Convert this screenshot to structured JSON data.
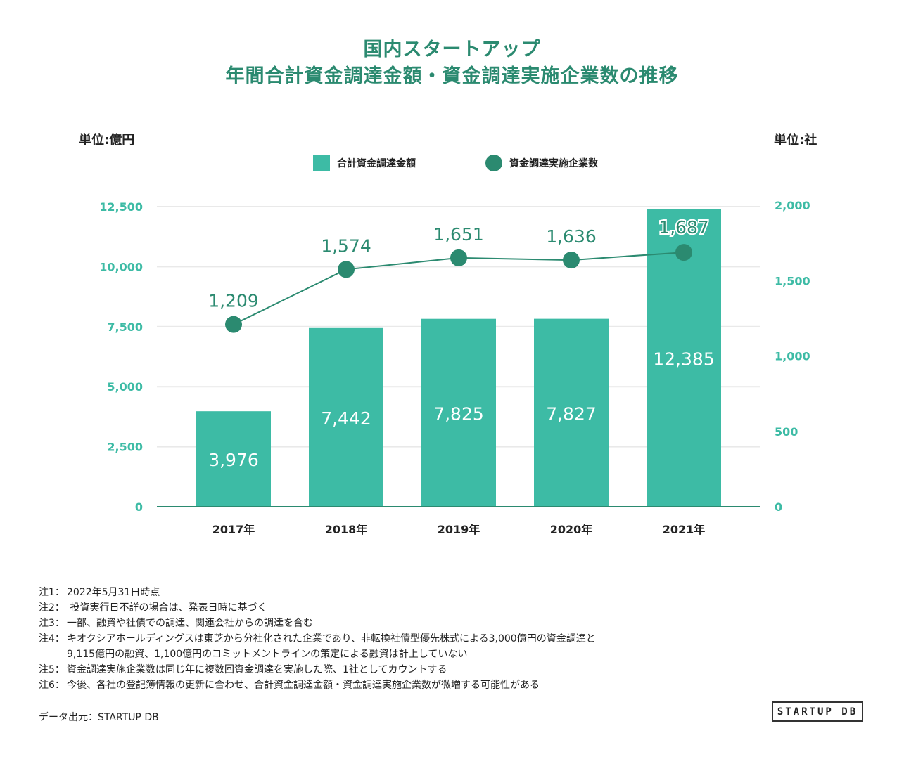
{
  "title": {
    "line1": "国内スタートアップ",
    "line2": "年間合計資金調達金額・資金調達実施企業数の推移"
  },
  "units": {
    "left": "単位:億円",
    "right": "単位:社"
  },
  "legend": {
    "bar": "合計資金調達金額",
    "line": "資金調達実施企業数"
  },
  "colors": {
    "bar": "#3dbba5",
    "line": "#2b8a70",
    "axis_text": "#3dbba5",
    "grid": "#e9e9e9"
  },
  "chart_data": {
    "type": "bar",
    "categories": [
      "2017年",
      "2018年",
      "2019年",
      "2020年",
      "2021年"
    ],
    "series": [
      {
        "name": "合計資金調達金額",
        "type": "bar",
        "axis": "left",
        "values": [
          3976,
          7442,
          7825,
          7827,
          12385
        ],
        "labels": [
          "3,976",
          "7,442",
          "7,825",
          "7,827",
          "12,385"
        ]
      },
      {
        "name": "資金調達実施企業数",
        "type": "line",
        "axis": "right",
        "values": [
          1209,
          1574,
          1651,
          1636,
          1687
        ],
        "labels": [
          "1,209",
          "1,574",
          "1,651",
          "1,636",
          "1,687"
        ]
      }
    ],
    "y_left": {
      "label": "単位:億円",
      "ylim": [
        0,
        12500
      ],
      "ticks": [
        0,
        2500,
        5000,
        7500,
        10000,
        12500
      ],
      "tick_labels": [
        "0",
        "2,500",
        "5,000",
        "7,500",
        "10,000",
        "12,500"
      ]
    },
    "y_right": {
      "label": "単位:社",
      "ylim": [
        0,
        2000
      ],
      "ticks": [
        0,
        500,
        1000,
        1500,
        2000
      ],
      "tick_labels": [
        "0",
        "500",
        "1,000",
        "1,500",
        "2,000"
      ]
    },
    "grid": true,
    "legend_position": "top-center"
  },
  "notes": [
    {
      "label": "注1：",
      "text": "2022年5月31日時点"
    },
    {
      "label": "注2：",
      "text": " 投資実行日不詳の場合は、発表日時に基づく"
    },
    {
      "label": "注3：",
      "text": "一部、融資や社債での調達、関連会社からの調達を含む"
    },
    {
      "label": "注4：",
      "text": "キオクシアホールディングスは東芝から分社化された企業であり、非転換社債型優先株式による3,000億円の資金調達と",
      "continuation": "9,115億円の融資、1,100億円のコミットメントラインの策定による融資は計上していない"
    },
    {
      "label": "注5：",
      "text": "資金調達実施企業数は同じ年に複数回資金調達を実施した際、1社としてカウントする"
    },
    {
      "label": "注6：",
      "text": "今後、各社の登記簿情報の更新に合わせ、合計資金調達金額・資金調達実施企業数が微増する可能性がある"
    }
  ],
  "source": "データ出元：STARTUP DB",
  "logo": "STARTUP DB"
}
